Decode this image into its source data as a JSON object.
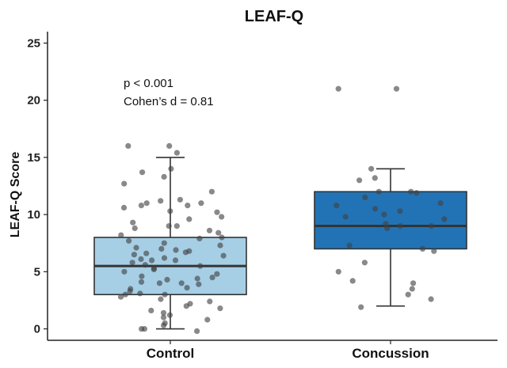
{
  "chart_data": {
    "type": "boxplot",
    "title": "LEAF-Q",
    "xlabel": "",
    "ylabel": "LEAF-Q Score",
    "ylim": [
      -1,
      26
    ],
    "yticks": [
      0,
      5,
      10,
      15,
      20,
      25
    ],
    "categories": [
      "Control",
      "Concussion"
    ],
    "annotations": [
      "p < 0.001",
      "Cohen’s d = 0.81"
    ],
    "colors": {
      "Control": "#a6cfe6",
      "Concussion": "#2273b5",
      "outline": "#333333",
      "points": "#404040"
    },
    "groups": [
      {
        "name": "Control",
        "whisker_low": 0,
        "q1": 3,
        "median": 5.5,
        "q3": 8,
        "whisker_high": 15,
        "points": [
          16,
          15.4,
          16,
          13.7,
          13.3,
          14,
          12.7,
          12,
          11.3,
          11.2,
          11,
          11,
          10.8,
          10.6,
          10.3,
          10.8,
          9.6,
          9.3,
          9,
          9,
          8.8,
          8.2,
          8.4,
          8,
          7.7,
          7.5,
          7.3,
          7.1,
          7,
          6.9,
          6.8,
          6.6,
          6.5,
          6.4,
          6.2,
          6.1,
          6,
          6,
          5.8,
          5.5,
          5.3,
          5.2,
          5,
          4.8,
          4.6,
          4.5,
          4.3,
          4.1,
          4,
          4,
          3.9,
          3.6,
          3.5,
          3.1,
          3,
          3,
          2.8,
          2.6,
          2.2,
          2,
          1.8,
          1.6,
          1.4,
          1.2,
          1,
          0.8,
          0.5,
          0.3,
          0,
          0,
          -0.2,
          3.3,
          5.6,
          7.9,
          8.6,
          9.8,
          10.2,
          2.4,
          4.4,
          6.7
        ]
      },
      {
        "name": "Concussion",
        "whisker_low": 2,
        "q1": 7,
        "median": 9,
        "q3": 12,
        "whisker_high": 14,
        "points": [
          21,
          21,
          14,
          13.2,
          13,
          12,
          12,
          11.9,
          11.5,
          11,
          10.8,
          10.5,
          10.3,
          10,
          9.8,
          9.6,
          9.2,
          9,
          9,
          8.8,
          7.3,
          7,
          6.8,
          5.8,
          5,
          4.2,
          4,
          3.5,
          3,
          2.6,
          1.9
        ]
      }
    ]
  }
}
